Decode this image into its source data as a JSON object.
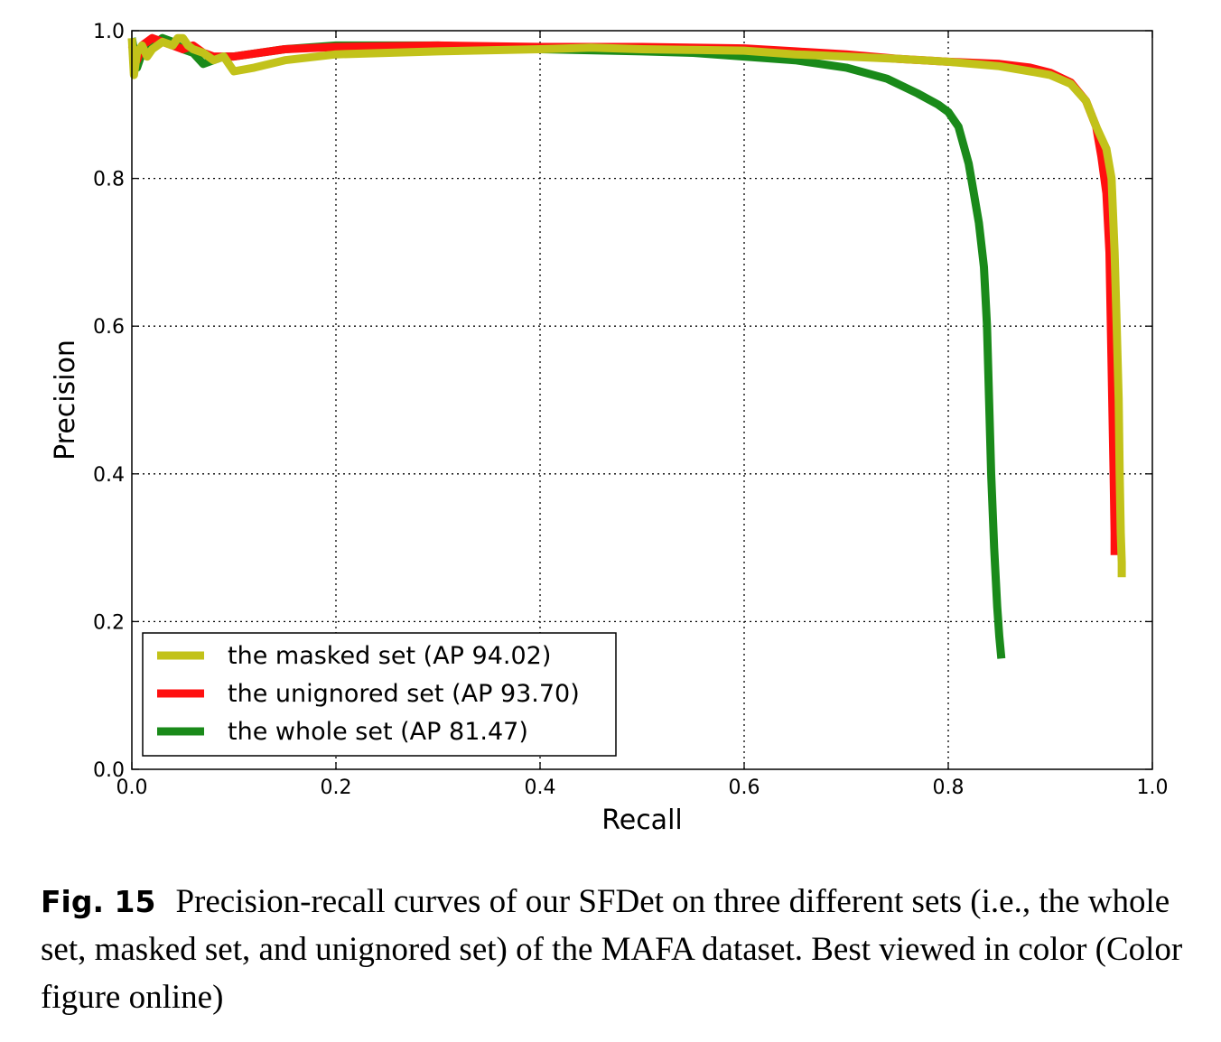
{
  "chart_data": {
    "type": "line",
    "xlabel": "Recall",
    "ylabel": "Precision",
    "xlim": [
      0.0,
      1.0
    ],
    "ylim": [
      0.0,
      1.0
    ],
    "xticks": [
      "0.0",
      "0.2",
      "0.4",
      "0.6",
      "0.8",
      "1.0"
    ],
    "yticks": [
      "0.0",
      "0.2",
      "0.4",
      "0.6",
      "0.8",
      "1.0"
    ],
    "grid": true,
    "legend_position": "lower-left",
    "series": [
      {
        "name": "the whole set (AP 81.47)",
        "color": "#1a8a1a",
        "x": [
          0.0,
          0.005,
          0.01,
          0.02,
          0.03,
          0.04,
          0.05,
          0.06,
          0.07,
          0.08,
          0.09,
          0.1,
          0.15,
          0.2,
          0.3,
          0.4,
          0.5,
          0.55,
          0.6,
          0.65,
          0.7,
          0.74,
          0.77,
          0.79,
          0.8,
          0.81,
          0.82,
          0.825,
          0.83,
          0.835,
          0.838,
          0.84,
          0.842,
          0.845,
          0.848,
          0.85,
          0.852
        ],
        "y": [
          0.99,
          0.95,
          0.97,
          0.98,
          0.99,
          0.985,
          0.975,
          0.97,
          0.955,
          0.96,
          0.965,
          0.965,
          0.975,
          0.98,
          0.98,
          0.975,
          0.972,
          0.97,
          0.965,
          0.96,
          0.95,
          0.935,
          0.915,
          0.9,
          0.89,
          0.87,
          0.82,
          0.78,
          0.74,
          0.68,
          0.6,
          0.5,
          0.4,
          0.3,
          0.22,
          0.18,
          0.15
        ]
      },
      {
        "name": "the unignored set (AP 93.70)",
        "color": "#ff1010",
        "x": [
          0.0,
          0.005,
          0.01,
          0.02,
          0.03,
          0.04,
          0.05,
          0.06,
          0.07,
          0.08,
          0.1,
          0.15,
          0.2,
          0.3,
          0.4,
          0.5,
          0.6,
          0.65,
          0.7,
          0.75,
          0.8,
          0.85,
          0.88,
          0.9,
          0.92,
          0.935,
          0.945,
          0.95,
          0.955,
          0.958,
          0.96,
          0.962,
          0.963,
          0.963
        ],
        "y": [
          0.98,
          0.96,
          0.98,
          0.99,
          0.985,
          0.98,
          0.975,
          0.98,
          0.97,
          0.965,
          0.965,
          0.975,
          0.978,
          0.98,
          0.978,
          0.978,
          0.976,
          0.972,
          0.968,
          0.962,
          0.958,
          0.955,
          0.95,
          0.943,
          0.93,
          0.905,
          0.87,
          0.83,
          0.78,
          0.7,
          0.55,
          0.4,
          0.32,
          0.29
        ]
      },
      {
        "name": "the masked set (AP 94.02)",
        "color": "#c2c21a",
        "x": [
          0.0,
          0.002,
          0.005,
          0.01,
          0.015,
          0.02,
          0.03,
          0.04,
          0.045,
          0.05,
          0.055,
          0.06,
          0.07,
          0.08,
          0.09,
          0.1,
          0.12,
          0.15,
          0.2,
          0.3,
          0.4,
          0.45,
          0.5,
          0.55,
          0.6,
          0.65,
          0.7,
          0.75,
          0.8,
          0.85,
          0.88,
          0.9,
          0.92,
          0.935,
          0.945,
          0.955,
          0.96,
          0.963,
          0.965,
          0.967,
          0.968,
          0.969,
          0.97,
          0.97
        ],
        "y": [
          0.99,
          0.94,
          0.97,
          0.98,
          0.965,
          0.975,
          0.985,
          0.98,
          0.99,
          0.99,
          0.98,
          0.975,
          0.97,
          0.96,
          0.965,
          0.945,
          0.95,
          0.96,
          0.968,
          0.972,
          0.975,
          0.977,
          0.975,
          0.974,
          0.973,
          0.968,
          0.965,
          0.962,
          0.958,
          0.952,
          0.945,
          0.94,
          0.928,
          0.905,
          0.87,
          0.84,
          0.8,
          0.7,
          0.6,
          0.5,
          0.4,
          0.32,
          0.28,
          0.26
        ]
      }
    ],
    "legend_order": [
      2,
      1,
      0
    ]
  },
  "caption": {
    "label": "Fig. 15",
    "text": "Precision-recall curves of our SFDet on three different sets (i.e., the whole set, masked set, and unignored set) of the MAFA dataset. Best viewed in color (Color figure online)"
  }
}
